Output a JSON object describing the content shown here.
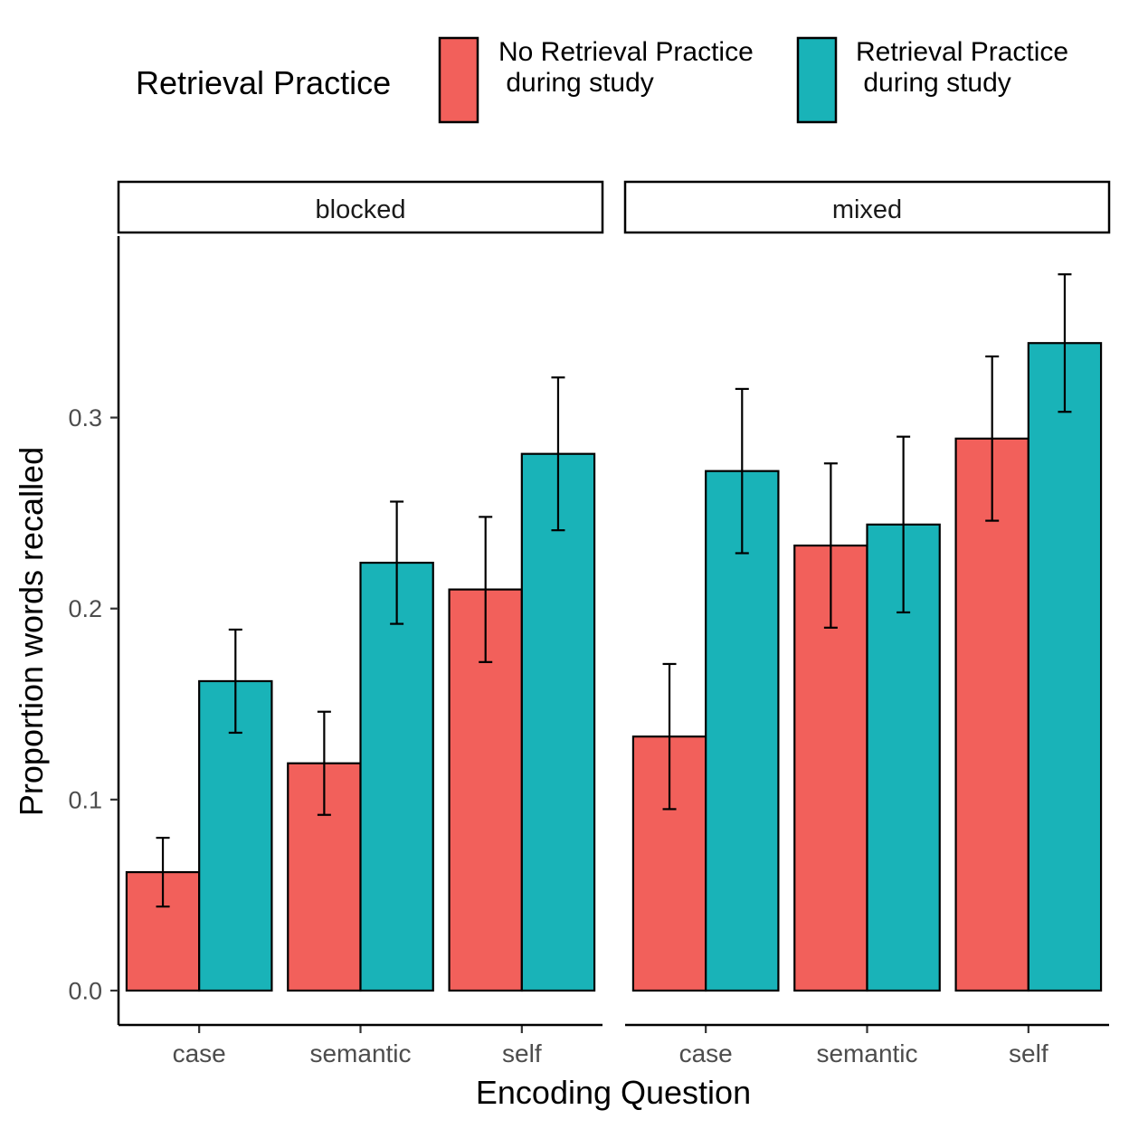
{
  "chart_data": {
    "type": "bar",
    "xlabel": "Encoding Question",
    "ylabel": "Proportion words recalled",
    "ylim": [
      -0.018,
      0.395
    ],
    "yticks": [
      0.0,
      0.1,
      0.2,
      0.3
    ],
    "ytick_labels": [
      "0.0",
      "0.1",
      "0.2",
      "0.3"
    ],
    "categories": [
      "case",
      "semantic",
      "self"
    ],
    "legend": {
      "title": "Retrieval Practice",
      "position": "top",
      "entries": [
        {
          "line1": "No Retrieval Practice",
          "line2": " during study",
          "color": "#F2605B"
        },
        {
          "line1": "Retrieval Practice",
          "line2": " during study",
          "color": "#19B3B8"
        }
      ]
    },
    "panels": [
      {
        "name": "blocked",
        "series": [
          {
            "name": "No Retrieval Practice during study",
            "color": "#F2605B",
            "values": [
              0.062,
              0.119,
              0.21
            ],
            "ci_low": [
              0.044,
              0.092,
              0.172
            ],
            "ci_high": [
              0.08,
              0.146,
              0.248
            ]
          },
          {
            "name": "Retrieval Practice during study",
            "color": "#19B3B8",
            "values": [
              0.162,
              0.224,
              0.281
            ],
            "ci_low": [
              0.135,
              0.192,
              0.241
            ],
            "ci_high": [
              0.189,
              0.256,
              0.321
            ]
          }
        ]
      },
      {
        "name": "mixed",
        "series": [
          {
            "name": "No Retrieval Practice during study",
            "color": "#F2605B",
            "values": [
              0.133,
              0.233,
              0.289
            ],
            "ci_low": [
              0.095,
              0.19,
              0.246
            ],
            "ci_high": [
              0.171,
              0.276,
              0.332
            ]
          },
          {
            "name": "Retrieval Practice during study",
            "color": "#19B3B8",
            "values": [
              0.272,
              0.244,
              0.339
            ],
            "ci_low": [
              0.229,
              0.198,
              0.303
            ],
            "ci_high": [
              0.315,
              0.29,
              0.375
            ]
          }
        ]
      }
    ],
    "grid": false
  }
}
